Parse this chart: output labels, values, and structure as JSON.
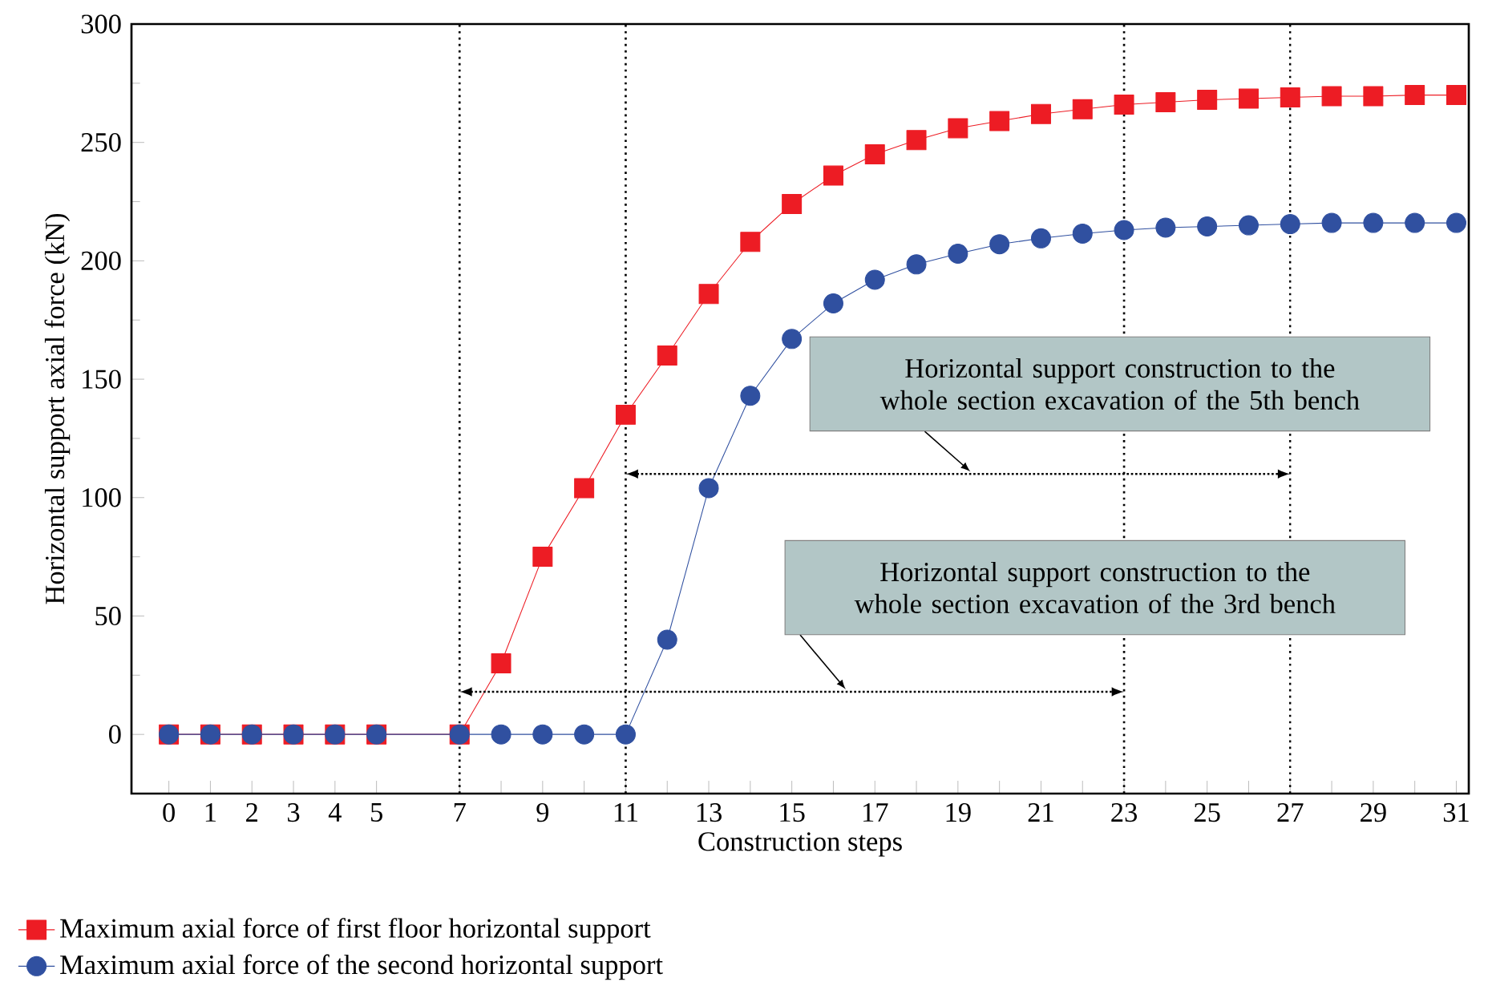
{
  "chart_data": {
    "type": "line",
    "xlabel": "Construction steps",
    "ylabel": "Horizontal support axial force (kN)",
    "x": [
      0,
      1,
      2,
      3,
      4,
      5,
      7,
      8,
      9,
      10,
      11,
      12,
      13,
      14,
      15,
      16,
      17,
      18,
      19,
      20,
      21,
      22,
      23,
      24,
      25,
      26,
      27,
      28,
      29,
      30,
      31
    ],
    "series": [
      {
        "name": "Maximum axial force of first floor horizontal support",
        "color": "#ed1c24",
        "marker": "square",
        "values": [
          0,
          0,
          0,
          0,
          0,
          0,
          0,
          30,
          75,
          104,
          135,
          160,
          186,
          208,
          224,
          236,
          245,
          251,
          256,
          259,
          262,
          264,
          266,
          267,
          268,
          268.5,
          269,
          269.5,
          269.5,
          270,
          270
        ]
      },
      {
        "name": "Maximum axial force of the second horizontal support",
        "color": "#3050a0",
        "marker": "circle",
        "values": [
          0,
          0,
          0,
          0,
          0,
          0,
          0,
          0,
          0,
          0,
          0,
          40,
          104,
          143,
          167,
          182,
          192,
          198.5,
          203,
          207,
          209.5,
          211.5,
          213,
          214,
          214.5,
          215,
          215.5,
          216,
          216,
          216,
          216
        ]
      }
    ],
    "xlim": [
      -0.9,
      31.3
    ],
    "ylim": [
      -25,
      300
    ],
    "xticks": [
      0,
      1,
      2,
      3,
      4,
      5,
      7,
      {
        "value": 8,
        "label": null
      },
      9,
      {
        "value": 10,
        "label": null
      },
      11,
      {
        "value": 12,
        "label": null
      },
      13,
      {
        "value": 14,
        "label": null
      },
      15,
      {
        "value": 16,
        "label": null
      },
      17,
      {
        "value": 18,
        "label": null
      },
      19,
      {
        "value": 20,
        "label": null
      },
      21,
      {
        "value": 22,
        "label": null
      },
      23,
      {
        "value": 24,
        "label": null
      },
      25,
      {
        "value": 26,
        "label": null
      },
      27,
      {
        "value": 28,
        "label": null
      },
      29,
      {
        "value": 30,
        "label": null
      },
      31
    ],
    "yticks": [
      0,
      50,
      100,
      150,
      200,
      250,
      300
    ],
    "ref_lines": [
      {
        "axis": "x",
        "value": 7,
        "line_style": "dotted"
      },
      {
        "axis": "x",
        "value": 11,
        "line_style": "dotted"
      },
      {
        "axis": "x",
        "value": 23,
        "line_style": "dotted"
      },
      {
        "axis": "x",
        "value": 27,
        "line_style": "dotted"
      }
    ],
    "annotations": [
      "Horizontal support construction to the whole section excavation of the 5th bench",
      "Horizontal support construction to the whole section excavation of the 3rd bench"
    ],
    "grid": false,
    "legend": "bottom",
    "line_style": "solid"
  }
}
